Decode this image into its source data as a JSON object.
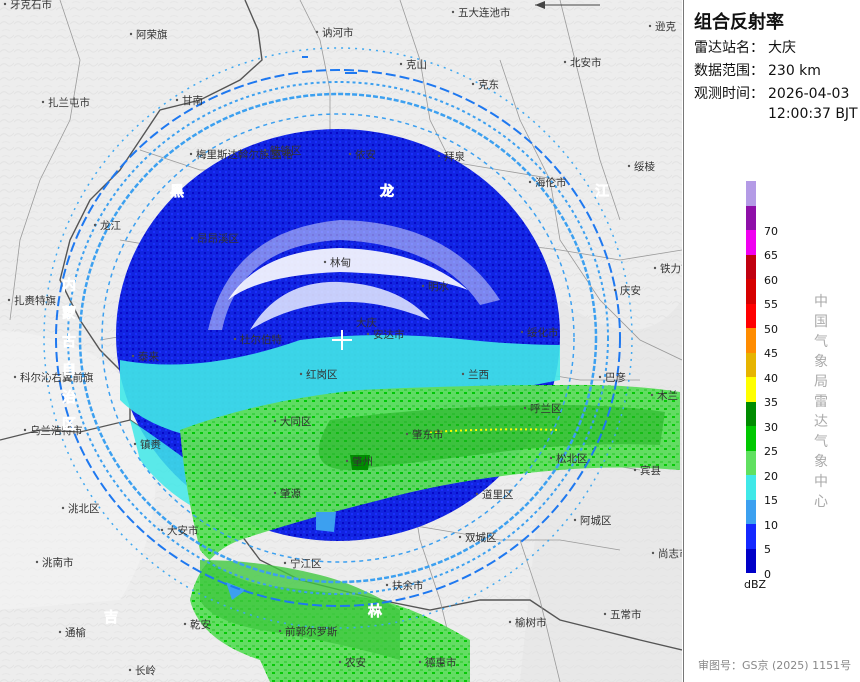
{
  "panel": {
    "title": "组合反射率",
    "station_label": "雷达站名：",
    "station_value": "大庆",
    "range_label": "数据范围：",
    "range_value": "230 km",
    "time_label": "观测时间：",
    "time_date": "2026-04-03",
    "time_clock": "12:00:37 BJT",
    "unit": "dBZ",
    "source": "中国气象局雷达气象中心",
    "review": "审图号：GS京 (2025) 1151号"
  },
  "legend": [
    {
      "value": "",
      "color": "#b49be6"
    },
    {
      "value": "70",
      "color": "#8e0fa8"
    },
    {
      "value": "65",
      "color": "#f000f0"
    },
    {
      "value": "60",
      "color": "#c00010"
    },
    {
      "value": "55",
      "color": "#d60000"
    },
    {
      "value": "50",
      "color": "#ff0000"
    },
    {
      "value": "45",
      "color": "#ff8c00"
    },
    {
      "value": "40",
      "color": "#e6b400"
    },
    {
      "value": "35",
      "color": "#ffff00"
    },
    {
      "value": "30",
      "color": "#008c00"
    },
    {
      "value": "25",
      "color": "#00c800"
    },
    {
      "value": "20",
      "color": "#60e060"
    },
    {
      "value": "15",
      "color": "#40e8e8"
    },
    {
      "value": "10",
      "color": "#3ca0f0"
    },
    {
      "value": "5",
      "color": "#1428ff"
    },
    {
      "value": "0",
      "color": "#0000c8"
    }
  ],
  "map": {
    "places": [
      {
        "name": "五大连池市"
      },
      {
        "name": "逊克"
      },
      {
        "name": "牙克石市"
      },
      {
        "name": "阿荣旗"
      },
      {
        "name": "讷河市"
      },
      {
        "name": "克山"
      },
      {
        "name": "北安市"
      },
      {
        "name": "扎兰屯市"
      },
      {
        "name": "甘南"
      },
      {
        "name": "克东"
      },
      {
        "name": "梅里斯达斡尔族区"
      },
      {
        "name": "富裕"
      },
      {
        "name": "依安"
      },
      {
        "name": "拜泉"
      },
      {
        "name": "海伦市"
      },
      {
        "name": "绥棱"
      },
      {
        "name": "铁锋区"
      },
      {
        "name": "龙江"
      },
      {
        "name": "昂昂溪区"
      },
      {
        "name": "林甸"
      },
      {
        "name": "明水"
      },
      {
        "name": "铁力市"
      },
      {
        "name": "扎赉特旗"
      },
      {
        "name": "杜尔伯特"
      },
      {
        "name": "安达市"
      },
      {
        "name": "绥化市"
      },
      {
        "name": "庆安"
      },
      {
        "name": "泰来"
      },
      {
        "name": "红岗区"
      },
      {
        "name": "兰西"
      },
      {
        "name": "巴彦"
      },
      {
        "name": "科尔沁右翼前旗"
      },
      {
        "name": "大同区"
      },
      {
        "name": "呼兰区"
      },
      {
        "name": "木兰"
      },
      {
        "name": "乌兰浩特市"
      },
      {
        "name": "镇赉"
      },
      {
        "name": "肇东市"
      },
      {
        "name": "肇州"
      },
      {
        "name": "松北区"
      },
      {
        "name": "宾县"
      },
      {
        "name": "肇源"
      },
      {
        "name": "道里区"
      },
      {
        "name": "洮北区"
      },
      {
        "name": "大安市"
      },
      {
        "name": "双城区"
      },
      {
        "name": "阿城区"
      },
      {
        "name": "尚志市"
      },
      {
        "name": "洮南市"
      },
      {
        "name": "宁江区"
      },
      {
        "name": "扶余市"
      },
      {
        "name": "五常市"
      },
      {
        "name": "通榆"
      },
      {
        "name": "乾安"
      },
      {
        "name": "前郭尔罗斯"
      },
      {
        "name": "榆树市"
      },
      {
        "name": "长岭"
      },
      {
        "name": "农安"
      },
      {
        "name": "德惠市"
      }
    ],
    "regions": [
      {
        "name": "黑"
      },
      {
        "name": "龙"
      },
      {
        "name": "江"
      },
      {
        "name": "内"
      },
      {
        "name": "蒙"
      },
      {
        "name": "古"
      },
      {
        "name": "自"
      },
      {
        "name": "治"
      },
      {
        "name": "区"
      },
      {
        "name": "吉"
      },
      {
        "name": "林"
      }
    ],
    "radar_center": {
      "name": "大庆"
    }
  }
}
